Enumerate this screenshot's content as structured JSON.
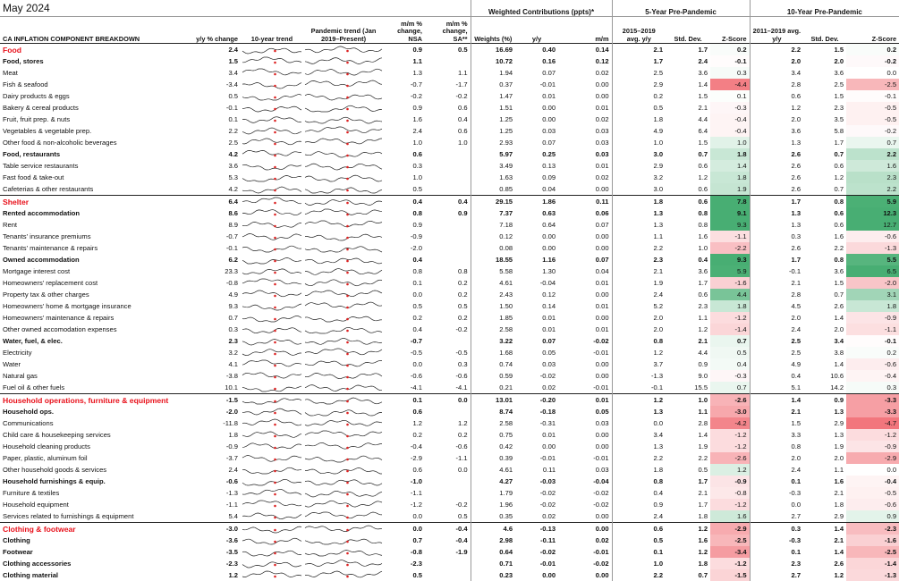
{
  "header": {
    "date": "May 2024",
    "title": "CA INFLATION COMPONENT BREAKDOWN",
    "yy": "y/y % change",
    "trend10": "10-year trend",
    "pandemic": "Pandemic trend (Jan 2019–Present)",
    "mm_nsa": "m/m % change, NSA",
    "mm_sa": "m/m % change, SA**",
    "wc": "Weighted Contributions (ppts)*",
    "weights": "Weights (%)",
    "wc_yy": "y/y",
    "wc_mm": "m/m",
    "five": "5-Year Pre-Pandemic",
    "five_avg": "2015–2019 avg. y/y",
    "five_sd": "Std. Dev.",
    "five_z": "Z-Score",
    "ten": "10-Year Pre-Pandemic",
    "ten_avg": "2011–2019 avg. y/y",
    "ten_sd": "Std. Dev.",
    "ten_z": "Z-Score"
  },
  "table": {
    "rows": [
      {
        "level": 0,
        "cells": [
          "Food",
          "2.4",
          "0.9",
          "0.5",
          "16.69",
          "0.40",
          "0.14",
          "2.1",
          "1.7",
          "0.2",
          "2.2",
          "1.5",
          "0.2"
        ]
      },
      {
        "level": 1,
        "cells": [
          "Food, stores",
          "1.5",
          "1.1",
          null,
          "10.72",
          "0.16",
          "0.12",
          "1.7",
          "2.4",
          "-0.1",
          "2.0",
          "2.0",
          "-0.2"
        ]
      },
      {
        "level": 2,
        "cells": [
          "Meat",
          "3.4",
          "1.3",
          "1.1",
          "1.94",
          "0.07",
          "0.02",
          "2.5",
          "3.6",
          "0.3",
          "3.4",
          "3.6",
          "0.0"
        ]
      },
      {
        "level": 2,
        "cells": [
          "Fish & seafood",
          "-3.4",
          "-0.7",
          "-1.7",
          "0.37",
          "-0.01",
          "0.00",
          "2.9",
          "1.4",
          "-4.4",
          "2.8",
          "2.5",
          "-2.5"
        ]
      },
      {
        "level": 2,
        "cells": [
          "Dairy products & eggs",
          "0.5",
          "-0.2",
          "-0.2",
          "1.47",
          "0.01",
          "0.00",
          "0.2",
          "1.5",
          "0.1",
          "0.6",
          "1.5",
          "-0.1"
        ]
      },
      {
        "level": 2,
        "cells": [
          "Bakery & cereal products",
          "-0.1",
          "0.9",
          "0.6",
          "1.51",
          "0.00",
          "0.01",
          "0.5",
          "2.1",
          "-0.3",
          "1.2",
          "2.3",
          "-0.5"
        ]
      },
      {
        "level": 2,
        "cells": [
          "Fruit, fruit prep. & nuts",
          "0.1",
          "1.6",
          "0.4",
          "1.25",
          "0.00",
          "0.02",
          "1.8",
          "4.4",
          "-0.4",
          "2.0",
          "3.5",
          "-0.5"
        ]
      },
      {
        "level": 2,
        "cells": [
          "Vegetables & vegetable prep.",
          "2.2",
          "2.4",
          "0.6",
          "1.25",
          "0.03",
          "0.03",
          "4.9",
          "6.4",
          "-0.4",
          "3.6",
          "5.8",
          "-0.2"
        ]
      },
      {
        "level": 2,
        "cells": [
          "Other food & non-alcoholic beverages",
          "2.5",
          "1.0",
          "1.0",
          "2.93",
          "0.07",
          "0.03",
          "1.0",
          "1.5",
          "1.0",
          "1.3",
          "1.7",
          "0.7"
        ]
      },
      {
        "level": 1,
        "cells": [
          "Food, restaurants",
          "4.2",
          "0.6",
          null,
          "5.97",
          "0.25",
          "0.03",
          "3.0",
          "0.7",
          "1.8",
          "2.6",
          "0.7",
          "2.2"
        ]
      },
      {
        "level": 2,
        "cells": [
          "Table service restaurants",
          "3.6",
          "0.3",
          null,
          "3.49",
          "0.13",
          "0.01",
          "2.9",
          "0.6",
          "1.4",
          "2.6",
          "0.6",
          "1.6"
        ]
      },
      {
        "level": 2,
        "cells": [
          "Fast food & take-out",
          "5.3",
          "1.0",
          null,
          "1.63",
          "0.09",
          "0.02",
          "3.2",
          "1.2",
          "1.8",
          "2.6",
          "1.2",
          "2.3"
        ]
      },
      {
        "level": 2,
        "cells": [
          "Cafeterias & other restaurants",
          "4.2",
          "0.5",
          null,
          "0.85",
          "0.04",
          "0.00",
          "3.0",
          "0.6",
          "1.9",
          "2.6",
          "0.7",
          "2.2"
        ]
      },
      {
        "level": 0,
        "cells": [
          "Shelter",
          "6.4",
          "0.4",
          "0.4",
          "29.15",
          "1.86",
          "0.11",
          "1.8",
          "0.6",
          "7.8",
          "1.7",
          "0.8",
          "5.9"
        ]
      },
      {
        "level": 1,
        "cells": [
          "Rented accommodation",
          "8.6",
          "0.8",
          "0.9",
          "7.37",
          "0.63",
          "0.06",
          "1.3",
          "0.8",
          "9.1",
          "1.3",
          "0.6",
          "12.3"
        ]
      },
      {
        "level": 2,
        "cells": [
          "Rent",
          "8.9",
          "0.9",
          null,
          "7.18",
          "0.64",
          "0.07",
          "1.3",
          "0.8",
          "9.3",
          "1.3",
          "0.6",
          "12.7"
        ]
      },
      {
        "level": 2,
        "cells": [
          "Tenants' insurance premiums",
          "-0.7",
          "-0.9",
          null,
          "0.12",
          "0.00",
          "0.00",
          "1.1",
          "1.6",
          "-1.1",
          "0.3",
          "1.6",
          "-0.6"
        ]
      },
      {
        "level": 2,
        "cells": [
          "Tenants' maintenance & repairs",
          "-0.1",
          "-2.0",
          null,
          "0.08",
          "0.00",
          "0.00",
          "2.2",
          "1.0",
          "-2.2",
          "2.6",
          "2.2",
          "-1.3"
        ]
      },
      {
        "level": 1,
        "cells": [
          "Owned accommodation",
          "6.2",
          "0.4",
          null,
          "18.55",
          "1.16",
          "0.07",
          "2.3",
          "0.4",
          "9.3",
          "1.7",
          "0.8",
          "5.5"
        ]
      },
      {
        "level": 2,
        "cells": [
          "Mortgage interest cost",
          "23.3",
          "0.8",
          "0.8",
          "5.58",
          "1.30",
          "0.04",
          "2.1",
          "3.6",
          "5.9",
          "-0.1",
          "3.6",
          "6.5"
        ]
      },
      {
        "level": 2,
        "cells": [
          "Homeowners' replacement cost",
          "-0.8",
          "0.1",
          "0.2",
          "4.61",
          "-0.04",
          "0.01",
          "1.9",
          "1.7",
          "-1.6",
          "2.1",
          "1.5",
          "-2.0"
        ]
      },
      {
        "level": 2,
        "cells": [
          "Property tax & other charges",
          "4.9",
          "0.0",
          "0.2",
          "2.43",
          "0.12",
          "0.00",
          "2.4",
          "0.6",
          "4.4",
          "2.8",
          "0.7",
          "3.1"
        ]
      },
      {
        "level": 2,
        "cells": [
          "Homeowners' home & mortgage insurance",
          "9.3",
          "0.5",
          "0.5",
          "1.50",
          "0.14",
          "0.01",
          "5.2",
          "2.3",
          "1.8",
          "4.5",
          "2.6",
          "1.8"
        ]
      },
      {
        "level": 2,
        "cells": [
          "Homeowners' maintenance & repairs",
          "0.7",
          "0.2",
          "0.2",
          "1.85",
          "0.01",
          "0.00",
          "2.0",
          "1.1",
          "-1.2",
          "2.0",
          "1.4",
          "-0.9"
        ]
      },
      {
        "level": 2,
        "cells": [
          "Other owned accomodation expenses",
          "0.3",
          "0.4",
          "-0.2",
          "2.58",
          "0.01",
          "0.01",
          "2.0",
          "1.2",
          "-1.4",
          "2.4",
          "2.0",
          "-1.1"
        ]
      },
      {
        "level": 1,
        "cells": [
          "Water, fuel, & elec.",
          "2.3",
          "-0.7",
          null,
          "3.22",
          "0.07",
          "-0.02",
          "0.8",
          "2.1",
          "0.7",
          "2.5",
          "3.4",
          "-0.1"
        ]
      },
      {
        "level": 2,
        "cells": [
          "Electricity",
          "3.2",
          "-0.5",
          "-0.5",
          "1.68",
          "0.05",
          "-0.01",
          "1.2",
          "4.4",
          "0.5",
          "2.5",
          "3.8",
          "0.2"
        ]
      },
      {
        "level": 2,
        "cells": [
          "Water",
          "4.1",
          "0.0",
          "0.3",
          "0.74",
          "0.03",
          "0.00",
          "3.7",
          "0.9",
          "0.4",
          "4.9",
          "1.4",
          "-0.6"
        ]
      },
      {
        "level": 2,
        "cells": [
          "Natural gas",
          "-3.8",
          "-0.6",
          "-0.6",
          "0.59",
          "-0.02",
          "0.00",
          "-1.3",
          "9.0",
          "-0.3",
          "0.4",
          "10.6",
          "-0.4"
        ]
      },
      {
        "level": 2,
        "cells": [
          "Fuel oil & other fuels",
          "10.1",
          "-4.1",
          "-4.1",
          "0.21",
          "0.02",
          "-0.01",
          "-0.1",
          "15.5",
          "0.7",
          "5.1",
          "14.2",
          "0.3"
        ]
      },
      {
        "level": 0,
        "cells": [
          "Household operations, furniture & equipment",
          "-1.5",
          "0.1",
          "0.0",
          "13.01",
          "-0.20",
          "0.01",
          "1.2",
          "1.0",
          "-2.6",
          "1.4",
          "0.9",
          "-3.3"
        ]
      },
      {
        "level": 1,
        "cells": [
          "Household ops.",
          "-2.0",
          "0.6",
          null,
          "8.74",
          "-0.18",
          "0.05",
          "1.3",
          "1.1",
          "-3.0",
          "2.1",
          "1.3",
          "-3.3"
        ]
      },
      {
        "level": 2,
        "cells": [
          "Communications",
          "-11.8",
          "1.2",
          "1.2",
          "2.58",
          "-0.31",
          "0.03",
          "0.0",
          "2.8",
          "-4.2",
          "1.5",
          "2.9",
          "-4.7"
        ]
      },
      {
        "level": 2,
        "cells": [
          "Child care & housekeeping services",
          "1.8",
          "0.2",
          "0.2",
          "0.75",
          "0.01",
          "0.00",
          "3.4",
          "1.4",
          "-1.2",
          "3.3",
          "1.3",
          "-1.2"
        ]
      },
      {
        "level": 2,
        "cells": [
          "Household cleaning products",
          "-0.9",
          "-0.4",
          "-0.6",
          "0.42",
          "0.00",
          "0.00",
          "1.3",
          "1.9",
          "-1.2",
          "0.8",
          "1.9",
          "-0.9"
        ]
      },
      {
        "level": 2,
        "cells": [
          "Paper, plastic, aluminum foil",
          "-3.7",
          "-2.9",
          "-1.1",
          "0.39",
          "-0.01",
          "-0.01",
          "2.2",
          "2.2",
          "-2.6",
          "2.0",
          "2.0",
          "-2.9"
        ]
      },
      {
        "level": 2,
        "cells": [
          "Other household goods & services",
          "2.4",
          "0.6",
          "0.0",
          "4.61",
          "0.11",
          "0.03",
          "1.8",
          "0.5",
          "1.2",
          "2.4",
          "1.1",
          "0.0"
        ]
      },
      {
        "level": 1,
        "cells": [
          "Household furnishings & equip.",
          "-0.6",
          "-1.0",
          null,
          "4.27",
          "-0.03",
          "-0.04",
          "0.8",
          "1.7",
          "-0.9",
          "0.1",
          "1.6",
          "-0.4"
        ]
      },
      {
        "level": 2,
        "cells": [
          "Furniture & textiles",
          "-1.3",
          "-1.1",
          null,
          "1.79",
          "-0.02",
          "-0.02",
          "0.4",
          "2.1",
          "-0.8",
          "-0.3",
          "2.1",
          "-0.5"
        ]
      },
      {
        "level": 2,
        "cells": [
          "Household equipment",
          "-1.1",
          "-1.2",
          "-0.2",
          "1.96",
          "-0.02",
          "-0.02",
          "0.9",
          "1.7",
          "-1.2",
          "0.0",
          "1.8",
          "-0.6"
        ]
      },
      {
        "level": 2,
        "cells": [
          "Services related to furnishings & equipment",
          "5.4",
          "0.0",
          "0.5",
          "0.35",
          "0.02",
          "0.00",
          "2.4",
          "1.8",
          "1.6",
          "2.7",
          "2.9",
          "0.9"
        ]
      },
      {
        "level": 0,
        "cells": [
          "Clothing & footwear",
          "-3.0",
          "0.0",
          "-0.4",
          "4.6",
          "-0.13",
          "0.00",
          "0.6",
          "1.2",
          "-2.9",
          "0.3",
          "1.4",
          "-2.3"
        ]
      },
      {
        "level": 1,
        "cells": [
          "Clothing",
          "-3.6",
          "0.7",
          "-0.4",
          "2.98",
          "-0.11",
          "0.02",
          "0.5",
          "1.6",
          "-2.5",
          "-0.3",
          "2.1",
          "-1.6"
        ]
      },
      {
        "level": 1,
        "cells": [
          "Footwear",
          "-3.5",
          "-0.8",
          "-1.9",
          "0.64",
          "-0.02",
          "-0.01",
          "0.1",
          "1.2",
          "-3.4",
          "0.1",
          "1.4",
          "-2.5"
        ]
      },
      {
        "level": 1,
        "cells": [
          "Clothing accessories",
          "-2.3",
          "-2.3",
          null,
          "0.71",
          "-0.01",
          "-0.02",
          "1.0",
          "1.8",
          "-1.2",
          "2.3",
          "2.6",
          "-1.4"
        ]
      },
      {
        "level": 1,
        "cells": [
          "Clothing material",
          "1.2",
          "0.5",
          null,
          "0.23",
          "0.00",
          "0.00",
          "2.2",
          "0.7",
          "-1.5",
          "2.7",
          "1.2",
          "-1.3"
        ]
      }
    ]
  }
}
